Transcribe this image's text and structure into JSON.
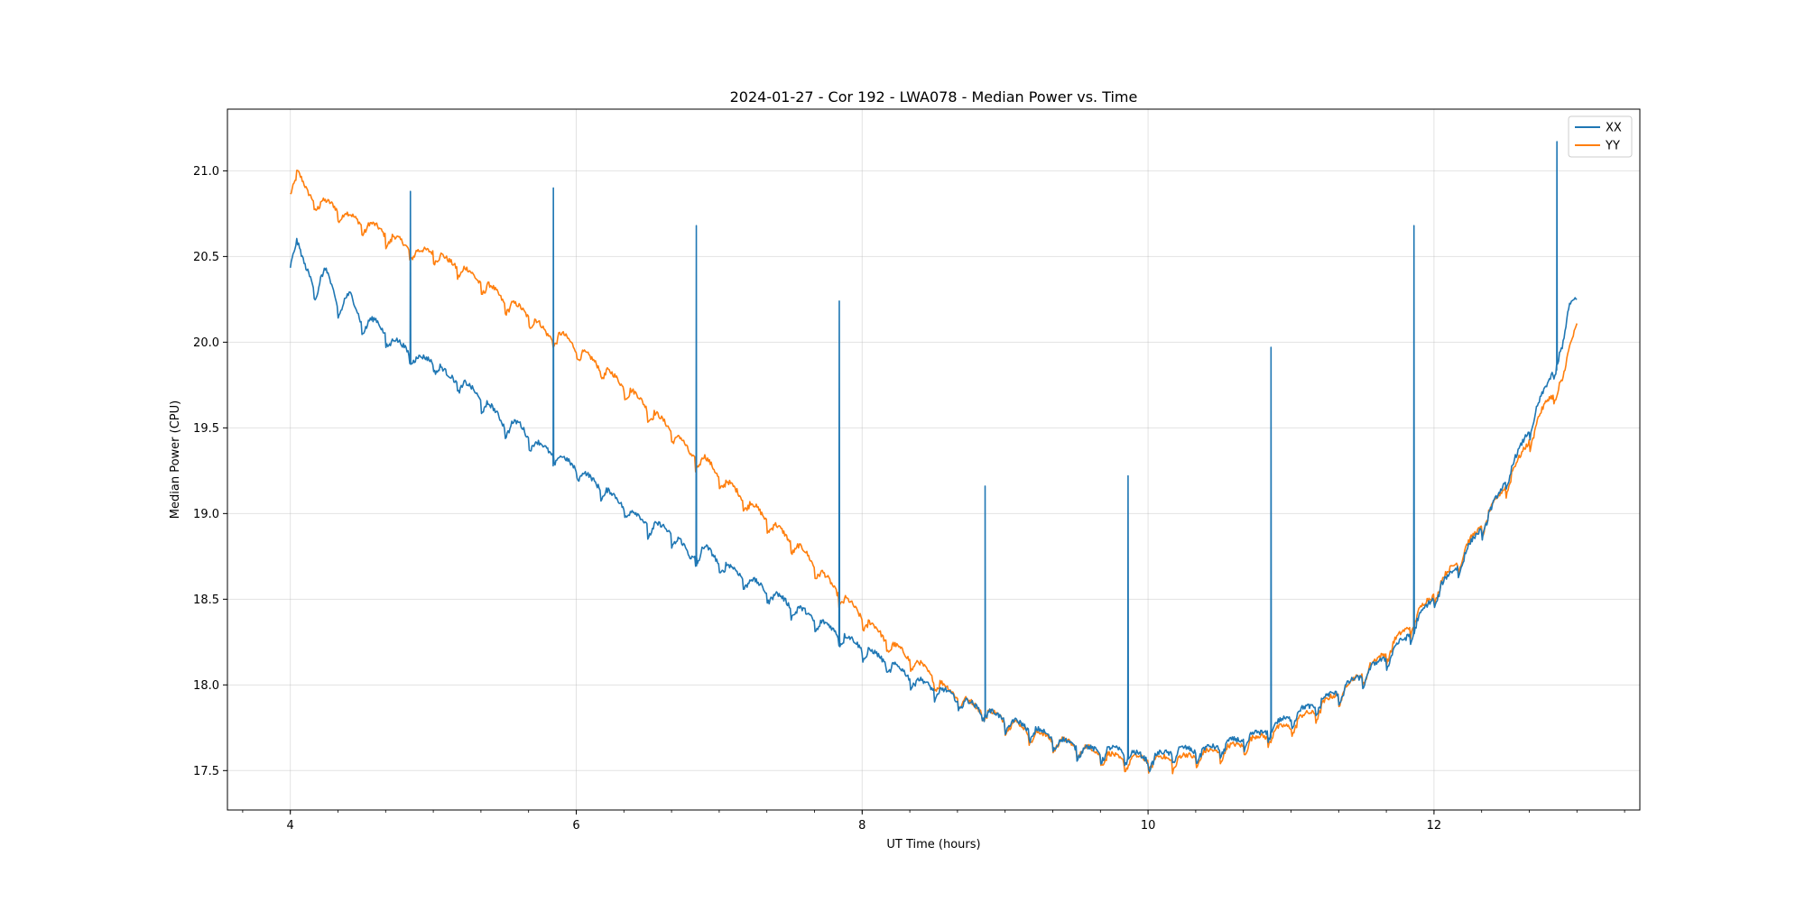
{
  "chart_data": {
    "type": "line",
    "title": "2024-01-27 - Cor 192 - LWA078 - Median Power vs. Time",
    "xlabel": "UT Time (hours)",
    "ylabel": "Median Power (CPU)",
    "xlim": [
      3.56,
      13.44
    ],
    "ylim": [
      17.27,
      21.36
    ],
    "xticks": [
      4,
      6,
      8,
      10,
      12
    ],
    "xtick_labels": [
      "4",
      "6",
      "8",
      "10",
      "12"
    ],
    "x_minor_step": 0.333333,
    "yticks": [
      17.5,
      18.0,
      18.5,
      19.0,
      19.5,
      20.0,
      20.5,
      21.0
    ],
    "ytick_labels": [
      "17.5",
      "18.0",
      "18.5",
      "19.0",
      "19.5",
      "20.0",
      "20.5",
      "21.0"
    ],
    "grid": true,
    "legend_position": "top-right",
    "series": [
      {
        "name": "XX",
        "color": "#1f77b4",
        "x": [
          4.0,
          4.04,
          4.1,
          4.18,
          4.25,
          4.33,
          4.42,
          4.5,
          4.6,
          4.7,
          4.8,
          4.9,
          5.0,
          5.1,
          5.2,
          5.3,
          5.4,
          5.5,
          5.6,
          5.7,
          5.8,
          5.9,
          6.0,
          6.1,
          6.2,
          6.3,
          6.4,
          6.5,
          6.6,
          6.7,
          6.8,
          6.9,
          7.0,
          7.2,
          7.4,
          7.6,
          7.8,
          8.0,
          8.2,
          8.4,
          8.6,
          8.8,
          9.0,
          9.2,
          9.4,
          9.6,
          9.8,
          10.0,
          10.2,
          10.4,
          10.6,
          10.8,
          11.0,
          11.2,
          11.4,
          11.6,
          11.8,
          12.0,
          12.2,
          12.4,
          12.6,
          12.8,
          12.9,
          12.95,
          13.0
        ],
        "y": [
          20.5,
          20.58,
          20.42,
          20.3,
          20.4,
          20.2,
          20.25,
          20.1,
          20.1,
          20.0,
          19.95,
          19.88,
          19.88,
          19.78,
          19.75,
          19.68,
          19.6,
          19.5,
          19.5,
          19.4,
          19.35,
          19.3,
          19.25,
          19.18,
          19.12,
          19.05,
          18.98,
          18.92,
          18.9,
          18.85,
          18.72,
          18.78,
          18.7,
          18.6,
          18.5,
          18.4,
          18.3,
          18.2,
          18.1,
          18.0,
          17.93,
          17.85,
          17.78,
          17.72,
          17.65,
          17.6,
          17.6,
          17.55,
          17.6,
          17.6,
          17.65,
          17.7,
          17.8,
          17.88,
          17.98,
          18.1,
          18.25,
          18.5,
          18.72,
          19.0,
          19.35,
          19.75,
          19.95,
          20.2,
          20.25
        ]
      },
      {
        "name": "YY",
        "color": "#ff7f0e",
        "x": [
          4.0,
          4.05,
          4.12,
          4.2,
          4.3,
          4.4,
          4.5,
          4.6,
          4.7,
          4.8,
          4.9,
          5.0,
          5.1,
          5.2,
          5.3,
          5.4,
          5.5,
          5.6,
          5.7,
          5.8,
          5.9,
          6.0,
          6.1,
          6.2,
          6.3,
          6.4,
          6.5,
          6.6,
          6.7,
          6.8,
          6.9,
          7.0,
          7.2,
          7.4,
          7.6,
          7.8,
          8.0,
          8.2,
          8.4,
          8.6,
          8.8,
          9.0,
          9.2,
          9.4,
          9.6,
          9.8,
          10.0,
          10.2,
          10.4,
          10.6,
          10.8,
          11.0,
          11.2,
          11.4,
          11.6,
          11.8,
          12.0,
          12.2,
          12.4,
          12.6,
          12.8,
          12.9,
          12.95,
          13.0
        ],
        "y": [
          20.92,
          20.97,
          20.85,
          20.8,
          20.78,
          20.72,
          20.68,
          20.65,
          20.6,
          20.55,
          20.5,
          20.52,
          20.45,
          20.42,
          20.35,
          20.3,
          20.22,
          20.18,
          20.12,
          20.02,
          20.02,
          19.95,
          19.88,
          19.82,
          19.75,
          19.68,
          19.6,
          19.52,
          19.45,
          19.32,
          19.3,
          19.2,
          19.05,
          18.9,
          18.75,
          18.55,
          18.38,
          18.22,
          18.1,
          17.95,
          17.85,
          17.78,
          17.7,
          17.65,
          17.6,
          17.55,
          17.55,
          17.55,
          17.58,
          17.62,
          17.68,
          17.75,
          17.85,
          17.98,
          18.12,
          18.3,
          18.52,
          18.75,
          19.0,
          19.3,
          19.65,
          19.75,
          19.95,
          20.1
        ]
      }
    ],
    "spikes": {
      "series": "XX",
      "x": [
        4.84,
        5.84,
        6.84,
        7.84,
        8.86,
        9.86,
        10.86,
        11.86,
        12.86
      ],
      "peak": [
        20.88,
        20.9,
        20.68,
        20.24,
        19.16,
        19.22,
        19.97,
        20.68,
        21.17
      ]
    }
  }
}
